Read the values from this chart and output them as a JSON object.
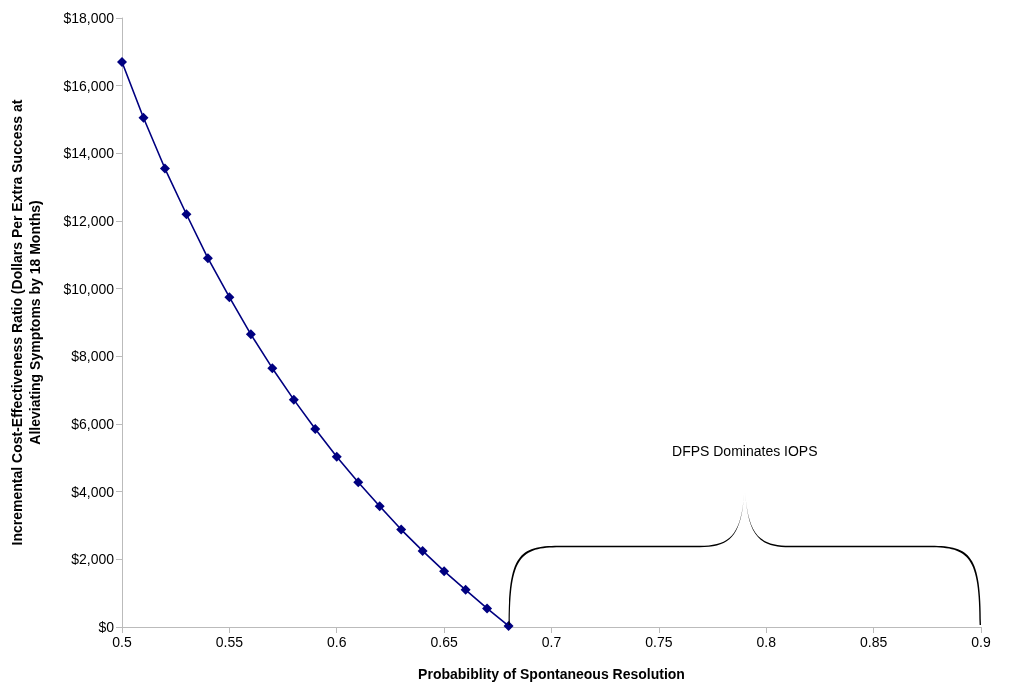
{
  "chart_data": {
    "type": "line",
    "xlabel": "Probabiblity of Spontaneous Resolution",
    "ylabel": "Incremental Cost-Effectiveness Ratio (Dollars Per Extra Success at\nAlleviating Symptoms by 18 Months)",
    "x": [
      0.5,
      0.51,
      0.52,
      0.53,
      0.54,
      0.55,
      0.56,
      0.57,
      0.58,
      0.59,
      0.6,
      0.61,
      0.62,
      0.63,
      0.64,
      0.65,
      0.66,
      0.67,
      0.68
    ],
    "series": [
      {
        "color": "#000080",
        "values": [
          16700,
          15050,
          13550,
          12200,
          10900,
          9750,
          8650,
          7650,
          6720,
          5850,
          5030,
          4280,
          3570,
          2880,
          2250,
          1650,
          1100,
          550,
          30
        ]
      }
    ],
    "xlim": [
      0.5,
      0.9
    ],
    "xticks": [
      0.5,
      0.55,
      0.6,
      0.65,
      0.7,
      0.75,
      0.8,
      0.85,
      0.9
    ],
    "ylim": [
      0,
      18000
    ],
    "yticks": [
      {
        "value": 0,
        "label": "$0"
      },
      {
        "value": 2000,
        "label": "$2,000"
      },
      {
        "value": 4000,
        "label": "$4,000"
      },
      {
        "value": 6000,
        "label": "$6,000"
      },
      {
        "value": 8000,
        "label": "$8,000"
      },
      {
        "value": 10000,
        "label": "$10,000"
      },
      {
        "value": 12000,
        "label": "$12,000"
      },
      {
        "value": 14000,
        "label": "$14,000"
      },
      {
        "value": 16000,
        "label": "$16,000"
      },
      {
        "value": 18000,
        "label": "$18,000"
      }
    ],
    "annotations": [
      "DFPS Dominates IOPS"
    ],
    "grid": false,
    "marker": "diamond",
    "line_style": "solid"
  }
}
